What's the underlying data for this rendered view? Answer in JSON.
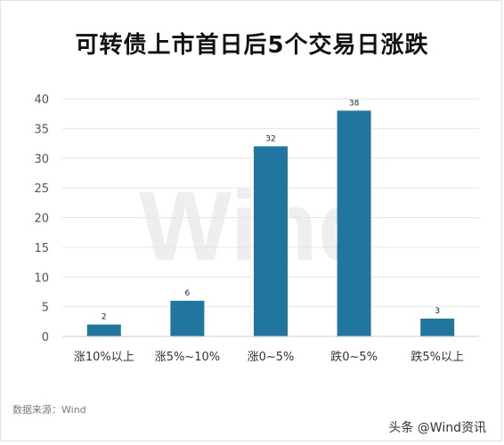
{
  "chart_data": {
    "type": "bar",
    "title": "可转债上市首日后5个交易日涨跌",
    "categories": [
      "涨10%以上",
      "涨5%~10%",
      "涨0~5%",
      "跌0~5%",
      "跌5%以上"
    ],
    "values": [
      2,
      6,
      32,
      38,
      3
    ],
    "ylim": [
      0,
      40
    ],
    "yticks": [
      0,
      5,
      10,
      15,
      20,
      25,
      30,
      35,
      40
    ],
    "grid": true,
    "bar_color": "#21769f"
  },
  "watermark": "Wind",
  "source": "数据来源：Wind",
  "credit": "头条 @Wind资讯"
}
